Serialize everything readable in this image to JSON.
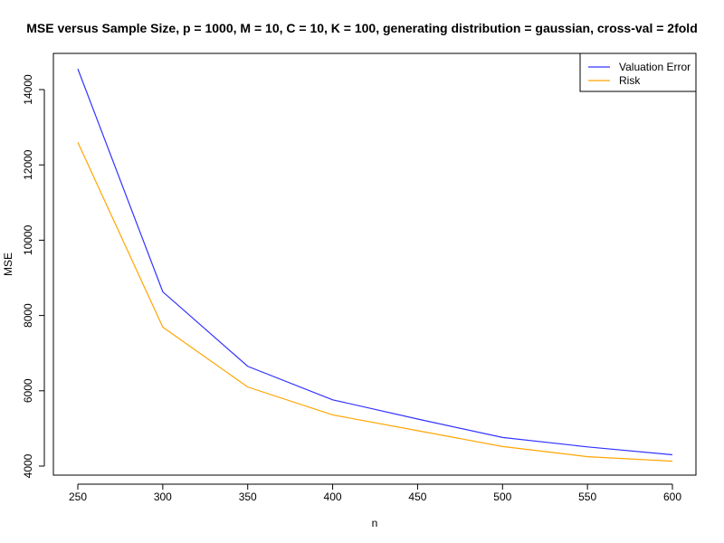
{
  "chart_data": {
    "type": "line",
    "title": "MSE versus Sample Size, p = 1000, M = 10, C = 10, K = 100, generating distribution = gaussian, cross-val = 2fold",
    "xlabel": "n",
    "ylabel": "MSE",
    "x": [
      250,
      300,
      350,
      400,
      450,
      500,
      550,
      600
    ],
    "xlim": [
      250,
      600
    ],
    "ylim": [
      4000,
      14500
    ],
    "xticks": [
      "250",
      "300",
      "350",
      "400",
      "450",
      "500",
      "550",
      "600"
    ],
    "yticks": [
      "4000",
      "6000",
      "8000",
      "10000",
      "12000",
      "14000"
    ],
    "xtick_values": [
      250,
      300,
      350,
      400,
      450,
      500,
      550,
      600
    ],
    "ytick_values": [
      4000,
      6000,
      8000,
      10000,
      12000,
      14000
    ],
    "grid": false,
    "legend_position": "top-right",
    "series": [
      {
        "name": "Valuation Error",
        "color": "#3333ff",
        "values": [
          14550,
          8630,
          6650,
          5760,
          5250,
          4760,
          4510,
          4300
        ]
      },
      {
        "name": "Risk",
        "color": "#ffa500",
        "values": [
          12600,
          7690,
          6100,
          5360,
          4940,
          4520,
          4250,
          4130
        ]
      }
    ]
  }
}
